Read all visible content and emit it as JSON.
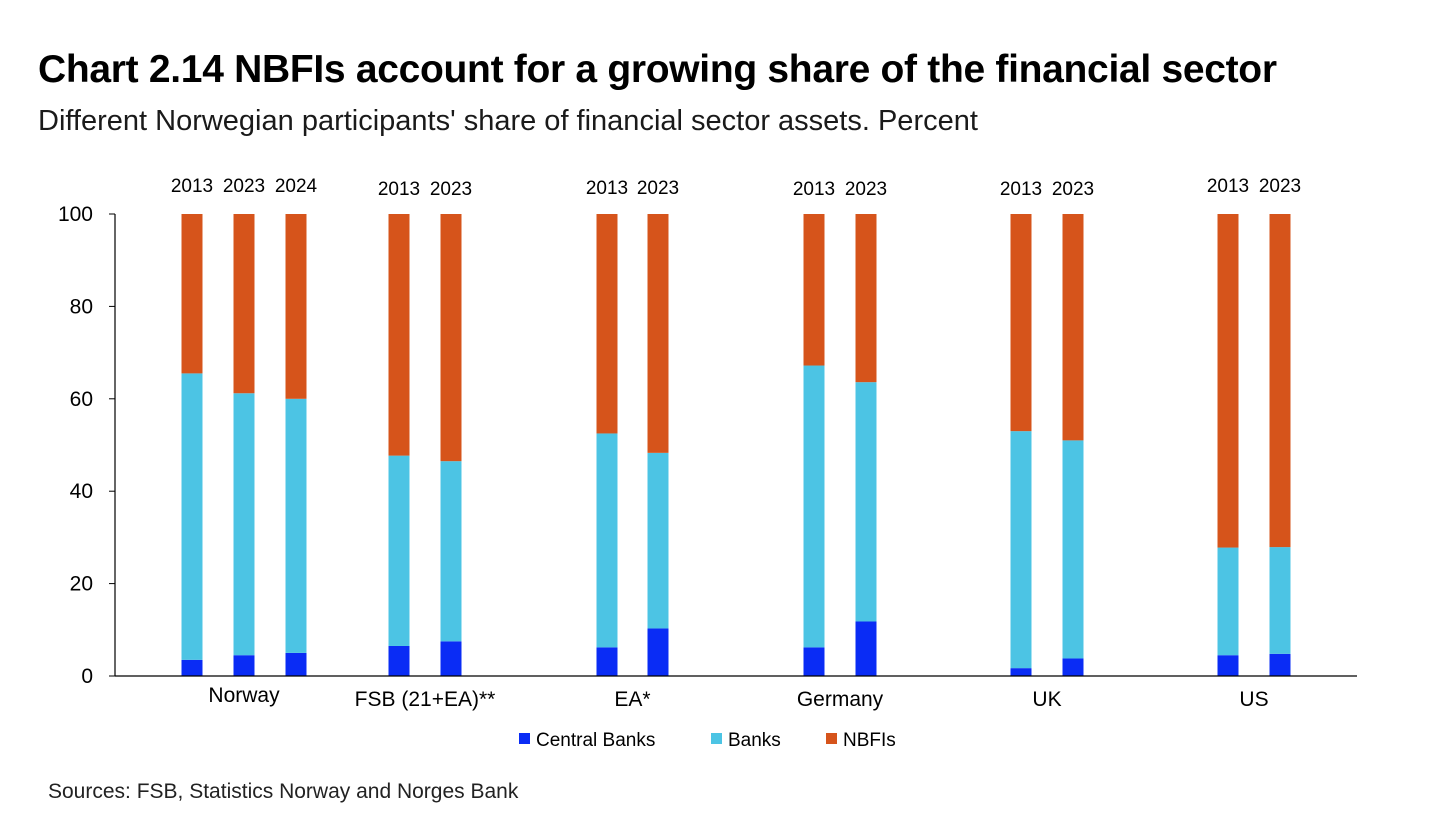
{
  "chart_data": {
    "type": "bar",
    "stacked": true,
    "title": "Chart 2.14 NBFIs account for a growing share of the financial sector",
    "subtitle": "Different Norwegian participants' share of financial sector assets. Percent",
    "source": "Sources: FSB, Statistics Norway and Norges Bank",
    "ylim": [
      0,
      100
    ],
    "yticks": [
      0,
      20,
      40,
      60,
      80,
      100
    ],
    "series": [
      {
        "name": "Central Banks",
        "color": "#0a2cf5"
      },
      {
        "name": "Banks",
        "color": "#4cc4e4"
      },
      {
        "name": "NBFIs",
        "color": "#d6541b"
      }
    ],
    "groups": [
      {
        "label": "Norway",
        "bars": [
          {
            "year": "2013",
            "values": [
              3.5,
              62,
              34.5
            ]
          },
          {
            "year": "2023",
            "values": [
              4.5,
              56.7,
              38.8
            ]
          },
          {
            "year": "2024",
            "values": [
              5,
              55,
              40
            ]
          }
        ]
      },
      {
        "label": "FSB (21+EA)**",
        "bars": [
          {
            "year": "2013",
            "values": [
              6.5,
              41.2,
              52.3
            ]
          },
          {
            "year": "2023",
            "values": [
              7.5,
              39,
              53.5
            ]
          }
        ]
      },
      {
        "label": "EA*",
        "bars": [
          {
            "year": "2013",
            "values": [
              6.2,
              46.3,
              47.5
            ]
          },
          {
            "year": "2023",
            "values": [
              10.3,
              38,
              51.7
            ]
          }
        ]
      },
      {
        "label": "Germany",
        "bars": [
          {
            "year": "2013",
            "values": [
              6.2,
              61,
              32.8
            ]
          },
          {
            "year": "2023",
            "values": [
              11.8,
              51.8,
              36.4
            ]
          }
        ]
      },
      {
        "label": "UK",
        "bars": [
          {
            "year": "2013",
            "values": [
              1.7,
              51.3,
              47
            ]
          },
          {
            "year": "2023",
            "values": [
              3.8,
              47.2,
              49
            ]
          }
        ]
      },
      {
        "label": "US",
        "bars": [
          {
            "year": "2013",
            "values": [
              4.5,
              23.3,
              72.2
            ]
          },
          {
            "year": "2023",
            "values": [
              4.8,
              23.1,
              72.1
            ]
          }
        ]
      }
    ]
  }
}
